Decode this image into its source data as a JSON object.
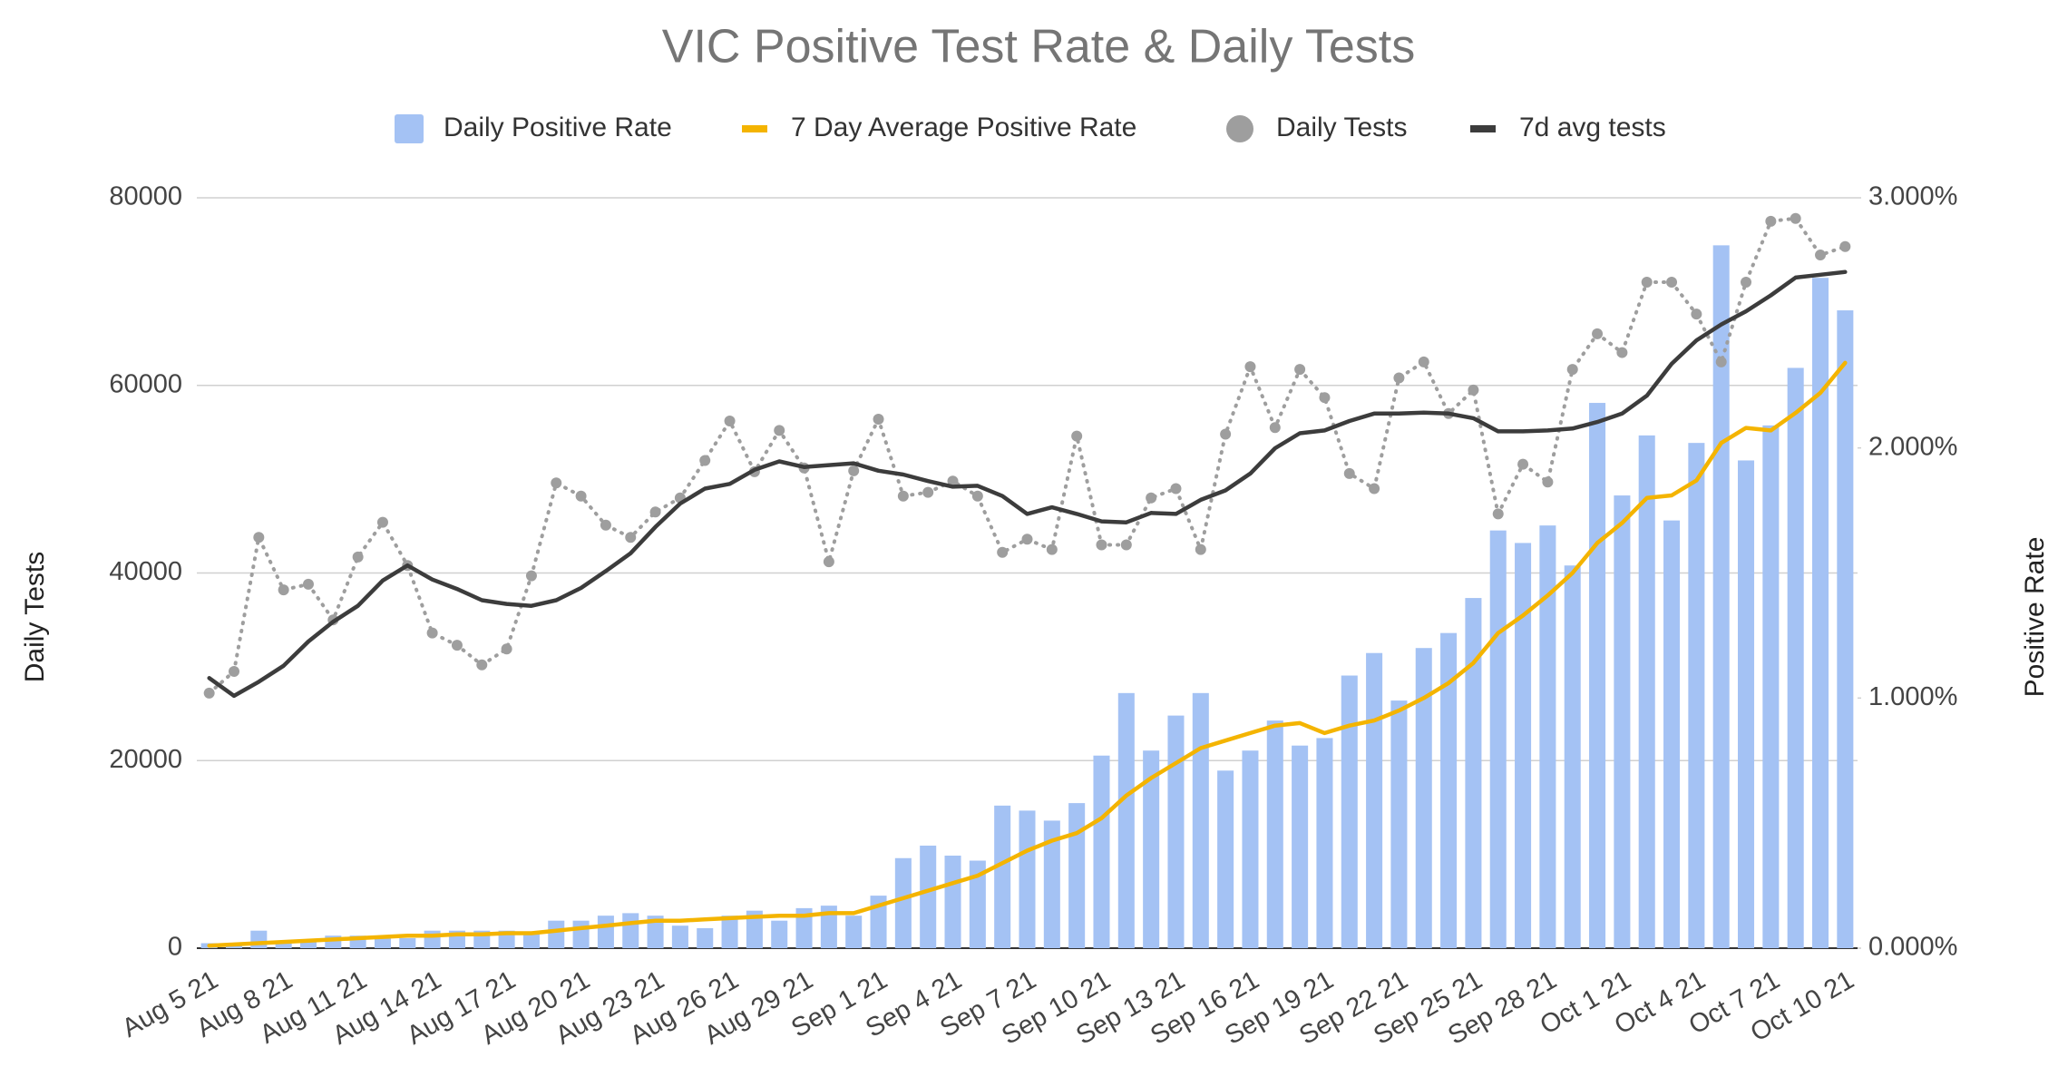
{
  "chart_data": {
    "type": "combo",
    "title": "VIC Positive Test Rate & Daily Tests",
    "y_label": "Daily Tests",
    "y2_label": "Positive Rate",
    "categories": [
      "Aug 5 21",
      null,
      null,
      "Aug 8 21",
      null,
      null,
      "Aug 11 21",
      null,
      null,
      "Aug 14 21",
      null,
      null,
      "Aug 17 21",
      null,
      null,
      "Aug 20 21",
      null,
      null,
      "Aug 23 21",
      null,
      null,
      "Aug 26 21",
      null,
      null,
      "Aug 29 21",
      null,
      null,
      "Sep 1 21",
      null,
      null,
      "Sep 4 21",
      null,
      null,
      "Sep 7 21",
      null,
      null,
      "Sep 10 21",
      null,
      null,
      "Sep 13 21",
      null,
      null,
      "Sep 16 21",
      null,
      null,
      "Sep 19 21",
      null,
      null,
      "Sep 22 21",
      null,
      null,
      "Sep 25 21",
      null,
      null,
      "Sep 28 21",
      null,
      null,
      "Oct 1 21",
      null,
      null,
      "Oct 4 21",
      null,
      null,
      "Oct 7 21",
      null,
      null,
      "Oct 10 21"
    ],
    "ylim": [
      0,
      80000
    ],
    "yticks": [
      0,
      20000,
      40000,
      60000,
      80000
    ],
    "y2lim": [
      0,
      3
    ],
    "y2ticks": [
      {
        "value": 0,
        "label": "0.000%"
      },
      {
        "value": 1,
        "label": "1.000%"
      },
      {
        "value": 2,
        "label": "2.000%"
      },
      {
        "value": 3,
        "label": "3.000%"
      }
    ],
    "grid": true,
    "legend": "top",
    "series": [
      {
        "name": "Daily Positive Rate",
        "type": "bar",
        "axis": "y2",
        "color": "#a4c2f4",
        "values": [
          0.02,
          0.01,
          0.07,
          0.03,
          0.03,
          0.05,
          0.05,
          0.05,
          0.04,
          0.07,
          0.07,
          0.07,
          0.07,
          0.06,
          0.11,
          0.11,
          0.13,
          0.14,
          0.13,
          0.09,
          0.08,
          0.13,
          0.15,
          0.11,
          0.16,
          0.17,
          0.13,
          0.21,
          0.36,
          0.41,
          0.37,
          0.35,
          0.57,
          0.55,
          0.51,
          0.58,
          0.77,
          1.02,
          0.79,
          0.93,
          1.02,
          0.71,
          0.79,
          0.91,
          0.81,
          0.84,
          1.09,
          1.18,
          0.99,
          1.2,
          1.26,
          1.4,
          1.67,
          1.62,
          1.69,
          1.53,
          2.18,
          1.81,
          2.05,
          1.71,
          2.02,
          2.81,
          1.95,
          2.09,
          2.32,
          2.68,
          2.55
        ]
      },
      {
        "name": "7 Day Average Positive Rate",
        "type": "line",
        "axis": "y2",
        "color": "#f4b400",
        "values": [
          0.01,
          0.015,
          0.02,
          0.025,
          0.03,
          0.035,
          0.04,
          0.045,
          0.05,
          0.05,
          0.055,
          0.055,
          0.06,
          0.06,
          0.07,
          0.08,
          0.09,
          0.1,
          0.11,
          0.11,
          0.115,
          0.12,
          0.125,
          0.13,
          0.13,
          0.14,
          0.14,
          0.17,
          0.2,
          0.23,
          0.26,
          0.29,
          0.34,
          0.39,
          0.43,
          0.46,
          0.52,
          0.61,
          0.68,
          0.74,
          0.8,
          0.83,
          0.86,
          0.89,
          0.9,
          0.86,
          0.89,
          0.91,
          0.95,
          1.0,
          1.06,
          1.14,
          1.26,
          1.33,
          1.41,
          1.5,
          1.62,
          1.7,
          1.8,
          1.81,
          1.87,
          2.02,
          2.08,
          2.07,
          2.14,
          2.22,
          2.34
        ]
      },
      {
        "name": "Daily Tests",
        "type": "dotted",
        "color": "#9e9e9e",
        "values": [
          27200,
          29500,
          43800,
          38200,
          38800,
          35000,
          41700,
          45400,
          40800,
          33600,
          32300,
          30200,
          31900,
          39700,
          49600,
          48200,
          45100,
          43800,
          46500,
          48000,
          52000,
          56200,
          50800,
          55200,
          51200,
          41200,
          50900,
          56400,
          48200,
          48600,
          49800,
          48200,
          42200,
          43600,
          42500,
          54600,
          43000,
          43000,
          48000,
          49000,
          42500,
          54800,
          62000,
          55500,
          61700,
          58700,
          50600,
          49000,
          60800,
          62500,
          57000,
          59500,
          46300,
          51600,
          49700,
          61700,
          65500,
          63500,
          71000,
          71000,
          67600,
          62500,
          71000,
          77500,
          77800,
          73900,
          74800
        ]
      },
      {
        "name": "7d avg tests",
        "type": "line",
        "color": "#3c3c3c",
        "values": [
          28800,
          26900,
          28400,
          30100,
          32700,
          34800,
          36500,
          39200,
          40800,
          39300,
          38300,
          37100,
          36700,
          36500,
          37100,
          38400,
          40200,
          42100,
          44900,
          47400,
          49000,
          49500,
          51000,
          51900,
          51300,
          51500,
          51700,
          50900,
          50500,
          49800,
          49200,
          49300,
          48200,
          46300,
          47000,
          46300,
          45500,
          45400,
          46400,
          46300,
          47800,
          48800,
          50600,
          53300,
          54900,
          55200,
          56200,
          57000,
          57000,
          57100,
          57000,
          56500,
          55100,
          55100,
          55200,
          55400,
          56100,
          57000,
          58900,
          62300,
          64800,
          66500,
          67900,
          69600,
          71500,
          71800,
          72100
        ]
      }
    ]
  }
}
